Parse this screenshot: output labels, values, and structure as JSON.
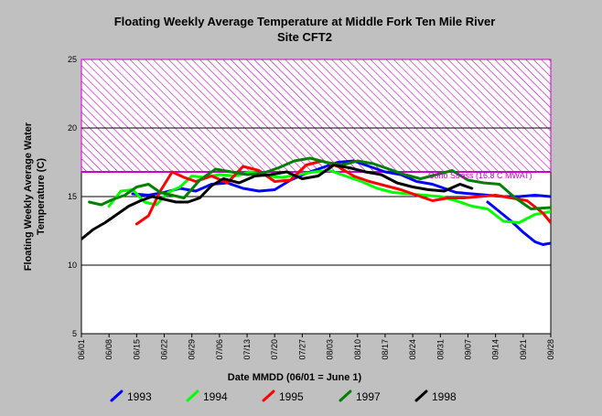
{
  "chart_data": {
    "type": "line",
    "title": "Floating Weekly Average Temperature at Middle Fork Ten Mile River",
    "subtitle": "Site CFT2",
    "xlabel": "Date MMDD (06/01 = June 1)",
    "ylabel_line1": "Floating Weekly Average Water",
    "ylabel_line2": "Temperature (C)",
    "ylim": [
      5,
      25
    ],
    "yticks": [
      "5",
      "10",
      "15",
      "20",
      "25"
    ],
    "xticks": [
      "06/01",
      "06/08",
      "06/15",
      "06/22",
      "06/29",
      "07/06",
      "07/13",
      "07/20",
      "07/27",
      "08/03",
      "08/10",
      "08/17",
      "08/24",
      "08/31",
      "09/07",
      "09/14",
      "09/21",
      "09/28"
    ],
    "grid": "horizontal",
    "threshold_band": {
      "y_min": 16.8,
      "y_max": 25,
      "color": "#cc00cc",
      "pattern": "hatched"
    },
    "annotation": "Coho Stress (16.8 C MWAT)",
    "series": [
      {
        "name": "1993",
        "color": "#0000ff",
        "x": [
          13,
          17,
          21,
          25,
          29,
          33,
          37,
          41,
          45,
          49,
          53,
          57,
          61,
          65,
          69,
          73,
          77,
          81,
          85,
          89,
          93,
          95,
          99,
          103,
          107,
          111,
          115,
          119
        ],
        "y": [
          15.2,
          15.1,
          15.3,
          15.6,
          15.4,
          15.9,
          16.0,
          15.6,
          15.4,
          15.5,
          16.2,
          16.7,
          17.1,
          17.5,
          17.6,
          17.2,
          16.8,
          16.6,
          16.1,
          15.9,
          15.5,
          15.3,
          15.2,
          15.1,
          15.0,
          15.0,
          15.1,
          15.0
        ]
      },
      {
        "name": "1993b",
        "color": "#0000ff",
        "x": [
          103,
          106,
          109,
          112,
          115,
          117,
          119
        ],
        "y": [
          14.6,
          13.9,
          13.2,
          12.4,
          11.7,
          11.5,
          11.6
        ]
      },
      {
        "name": "1994",
        "color": "#00ff00",
        "x": [
          7,
          10,
          13,
          16,
          19,
          22,
          25,
          28,
          31,
          35,
          39,
          43,
          47,
          51,
          55,
          59,
          63,
          67,
          71,
          75,
          79,
          83,
          87,
          91,
          95,
          99,
          103,
          107,
          111,
          115,
          119
        ],
        "y": [
          14.3,
          15.4,
          15.5,
          14.6,
          14.4,
          15.3,
          15.7,
          16.5,
          16.4,
          16.6,
          16.5,
          16.8,
          16.5,
          16.4,
          16.6,
          16.8,
          16.9,
          16.5,
          16.1,
          15.6,
          15.3,
          15.2,
          15.1,
          15.0,
          14.7,
          14.3,
          14.1,
          13.2,
          13.1,
          13.7,
          13.9
        ]
      },
      {
        "name": "1995",
        "color": "#ff0000",
        "x": [
          14,
          17,
          20,
          23,
          26,
          29,
          33,
          37,
          41,
          45,
          49,
          53,
          57,
          61,
          65,
          69,
          73,
          77,
          81,
          85,
          89,
          93,
          97,
          101,
          105,
          109,
          113,
          117,
          119
        ],
        "y": [
          13.0,
          13.6,
          15.4,
          16.8,
          16.4,
          16.1,
          16.5,
          16.0,
          17.2,
          16.9,
          16.1,
          16.2,
          17.3,
          17.6,
          17.2,
          16.5,
          16.1,
          15.8,
          15.5,
          15.1,
          14.7,
          14.9,
          14.9,
          15.0,
          15.1,
          14.9,
          14.7,
          13.8,
          13.1
        ]
      },
      {
        "name": "1997",
        "color": "#008000",
        "x": [
          2,
          5,
          8,
          11,
          14,
          17,
          20,
          23,
          26,
          30,
          34,
          38,
          42,
          46,
          50,
          54,
          58,
          62,
          66,
          70,
          74,
          78,
          82,
          86,
          90,
          94,
          98,
          102,
          106,
          110,
          114,
          119
        ],
        "y": [
          14.6,
          14.4,
          14.8,
          15.1,
          15.7,
          15.9,
          15.3,
          15.1,
          14.9,
          16.2,
          17.0,
          16.8,
          16.6,
          16.7,
          17.1,
          17.6,
          17.8,
          17.5,
          17.3,
          17.6,
          17.4,
          17.0,
          16.6,
          16.3,
          16.6,
          16.9,
          16.2,
          16.0,
          15.9,
          14.9,
          14.1,
          14.2
        ]
      },
      {
        "name": "1998",
        "color": "#000000",
        "x": [
          0,
          3,
          6,
          9,
          12,
          15,
          18,
          21,
          24,
          27,
          30,
          33,
          36,
          40,
          44,
          48,
          52,
          56,
          60,
          64,
          68,
          72,
          76,
          80,
          84,
          88,
          92,
          96,
          99
        ],
        "y": [
          11.9,
          12.6,
          13.1,
          13.7,
          14.3,
          14.7,
          15.0,
          14.8,
          14.6,
          14.6,
          14.9,
          15.8,
          16.3,
          16.0,
          16.5,
          16.6,
          16.8,
          16.3,
          16.5,
          17.3,
          17.1,
          16.8,
          16.6,
          16.0,
          15.7,
          15.5,
          15.4,
          15.9,
          15.6
        ]
      }
    ],
    "legend": [
      {
        "label": "1993",
        "color": "#0000ff"
      },
      {
        "label": "1994",
        "color": "#00ff00"
      },
      {
        "label": "1995",
        "color": "#ff0000"
      },
      {
        "label": "1997",
        "color": "#008000"
      },
      {
        "label": "1998",
        "color": "#000000"
      }
    ],
    "legend_placement": "bottom"
  }
}
